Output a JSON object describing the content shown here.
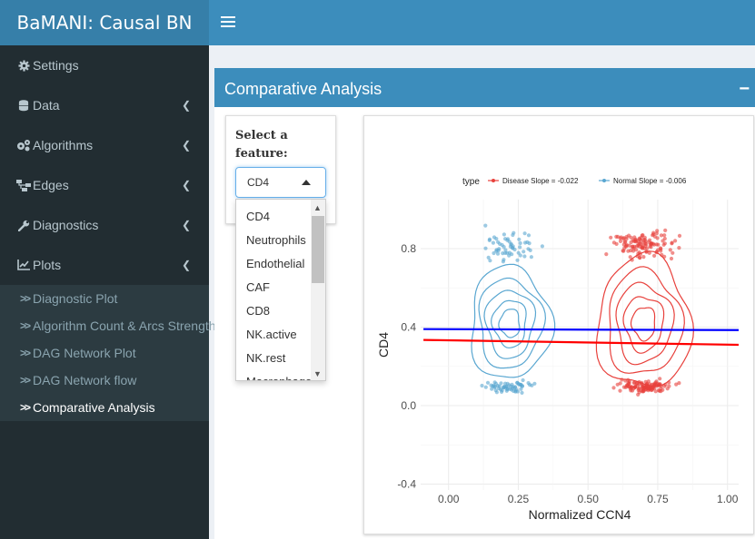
{
  "app": {
    "title": "BaMANI: Causal BN"
  },
  "sidebar": {
    "items": [
      {
        "label": "Settings",
        "icon": "gear-icon",
        "has_chevron": false
      },
      {
        "label": "Data",
        "icon": "database-icon",
        "has_chevron": true
      },
      {
        "label": "Algorithms",
        "icon": "cogs-icon",
        "has_chevron": true
      },
      {
        "label": "Edges",
        "icon": "sitemap-icon",
        "has_chevron": true
      },
      {
        "label": "Diagnostics",
        "icon": "wrench-icon",
        "has_chevron": true
      },
      {
        "label": "Plots",
        "icon": "line-chart-icon",
        "has_chevron": true
      }
    ],
    "plots_submenu": [
      {
        "label": "Diagnostic Plot",
        "active": false
      },
      {
        "label": "Algorithm Count & Arcs Strength",
        "active": false
      },
      {
        "label": "DAG Network Plot",
        "active": false
      },
      {
        "label": "DAG Network flow",
        "active": false
      },
      {
        "label": "Comparative Analysis",
        "active": true
      }
    ]
  },
  "box": {
    "title": "Comparative Analysis",
    "collapse_label": "−"
  },
  "feature_select": {
    "label": "Select a feature:",
    "selected": "CD4",
    "options": [
      "CD4",
      "Neutrophils",
      "Endothelial",
      "CAF",
      "CD8",
      "NK.active",
      "NK.rest",
      "Macrophage"
    ]
  },
  "colors": {
    "header": "#3c8dbc",
    "sidebar": "#222d32",
    "disease": "#e8413c",
    "normal": "#5aa7d1",
    "normal_line": "#0000ff",
    "disease_line": "#ff0000"
  },
  "chart_data": {
    "type": "scatter",
    "xlabel": "Normalized CCN4",
    "ylabel": "CD4",
    "xlim": [
      -0.1,
      1.04
    ],
    "ylim": [
      -0.43,
      1.05
    ],
    "x_ticks": [
      0.0,
      0.25,
      0.5,
      0.75,
      1.0
    ],
    "x_tick_labels": [
      "0.00",
      "0.25",
      "0.50",
      "0.75",
      "1.00"
    ],
    "y_ticks": [
      -0.4,
      0.0,
      0.4,
      0.8
    ],
    "y_tick_labels": [
      "-0.4",
      "0.0",
      "0.4",
      "0.8"
    ],
    "legend": {
      "title": "type",
      "position": "top",
      "entries": [
        "Disease Slope = -0.022",
        "Normal Slope = -0.006"
      ]
    },
    "lines": [
      {
        "name": "Disease Slope = -0.022",
        "x": [
          -0.09,
          1.04
        ],
        "y": [
          0.335,
          0.31
        ]
      },
      {
        "name": "Normal Slope = -0.006",
        "x": [
          -0.09,
          1.04
        ],
        "y": [
          0.39,
          0.385
        ]
      }
    ],
    "clusters": [
      {
        "name": "Disease",
        "center": [
          0.7,
          0.42
        ],
        "spread": [
          0.14,
          0.28
        ]
      },
      {
        "name": "Normal",
        "center": [
          0.22,
          0.42
        ],
        "spread": [
          0.12,
          0.24
        ]
      }
    ],
    "grid": true
  }
}
